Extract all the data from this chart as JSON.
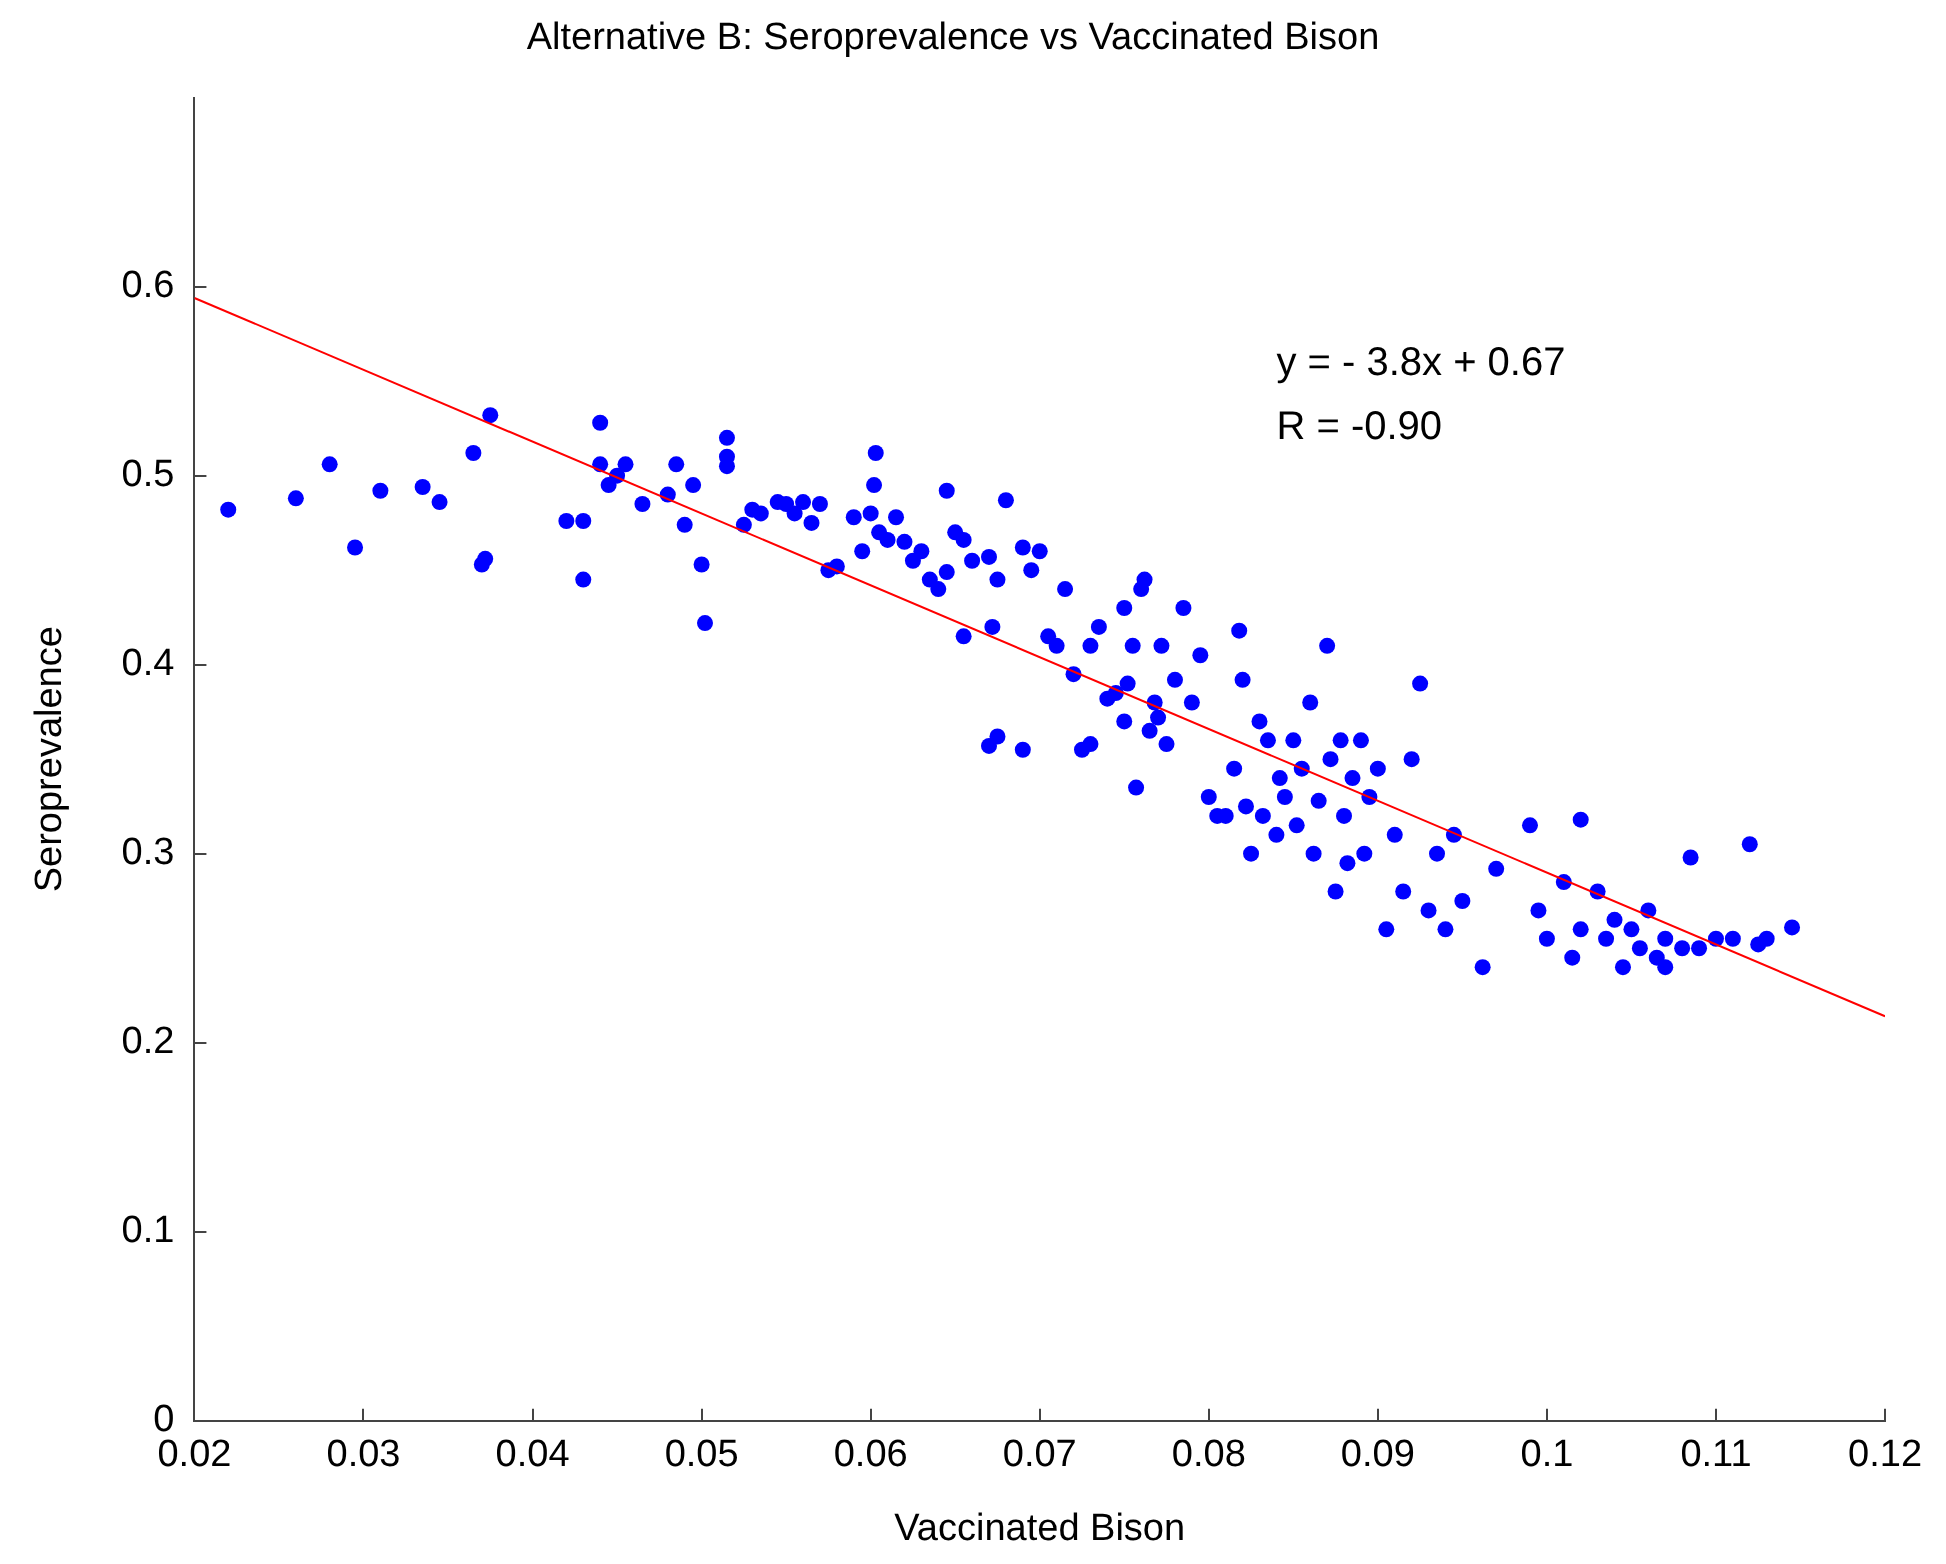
{
  "chart_data": {
    "type": "scatter",
    "title": "Alternative B: Seroprevalence vs Vaccinated Bison",
    "xlabel": "Vaccinated Bison",
    "ylabel": "Seroprevalence",
    "annotations": [
      "y = - 3.8x + 0.67",
      "R = -0.90"
    ],
    "xlim": [
      0.02,
      0.12
    ],
    "xticks": [
      0.02,
      0.03,
      0.04,
      0.05,
      0.06,
      0.07,
      0.08,
      0.09,
      0.1,
      0.11,
      0.12
    ],
    "ylim": [
      0,
      0.7
    ],
    "yticks": [
      0,
      0.1,
      0.2,
      0.3,
      0.4,
      0.5,
      0.6
    ],
    "grid": false,
    "legend": false,
    "marker": "circle",
    "series": [
      {
        "type": "scatter",
        "color": "#0000ff",
        "x": [
          0.022,
          0.026,
          0.028,
          0.0295,
          0.031,
          0.0335,
          0.0345,
          0.0365,
          0.037,
          0.0372,
          0.0375,
          0.042,
          0.043,
          0.043,
          0.044,
          0.044,
          0.0445,
          0.045,
          0.0455,
          0.0465,
          0.048,
          0.0485,
          0.049,
          0.0495,
          0.05,
          0.0502,
          0.0515,
          0.0515,
          0.0515,
          0.0525,
          0.053,
          0.0535,
          0.0545,
          0.055,
          0.0555,
          0.056,
          0.0565,
          0.057,
          0.0575,
          0.058,
          0.059,
          0.0595,
          0.06,
          0.0602,
          0.0603,
          0.0605,
          0.061,
          0.0615,
          0.062,
          0.0625,
          0.063,
          0.0635,
          0.064,
          0.0645,
          0.0645,
          0.065,
          0.0655,
          0.0655,
          0.066,
          0.067,
          0.0672,
          0.0675,
          0.068,
          0.067,
          0.0675,
          0.069,
          0.069,
          0.0695,
          0.07,
          0.0705,
          0.071,
          0.0715,
          0.072,
          0.0725,
          0.073,
          0.073,
          0.0735,
          0.074,
          0.0745,
          0.075,
          0.075,
          0.0752,
          0.0755,
          0.0757,
          0.076,
          0.0762,
          0.0765,
          0.0768,
          0.077,
          0.0772,
          0.0775,
          0.078,
          0.0785,
          0.079,
          0.0795,
          0.08,
          0.0805,
          0.081,
          0.0815,
          0.0818,
          0.082,
          0.0822,
          0.0825,
          0.083,
          0.0832,
          0.0835,
          0.084,
          0.0842,
          0.0845,
          0.085,
          0.0852,
          0.0855,
          0.086,
          0.0862,
          0.0865,
          0.087,
          0.0872,
          0.0875,
          0.0878,
          0.088,
          0.0882,
          0.0885,
          0.089,
          0.0892,
          0.0895,
          0.09,
          0.0905,
          0.091,
          0.0915,
          0.092,
          0.0925,
          0.093,
          0.0935,
          0.094,
          0.0945,
          0.095,
          0.0962,
          0.097,
          0.099,
          0.0995,
          0.1,
          0.101,
          0.1015,
          0.102,
          0.102,
          0.103,
          0.1035,
          0.104,
          0.1045,
          0.105,
          0.1055,
          0.106,
          0.1065,
          0.107,
          0.107,
          0.108,
          0.1085,
          0.109,
          0.11,
          0.111,
          0.112,
          0.1125,
          0.113,
          0.1145
        ],
        "values": [
          0.482,
          0.488,
          0.506,
          0.462,
          0.492,
          0.494,
          0.486,
          0.512,
          0.453,
          0.456,
          0.532,
          0.476,
          0.476,
          0.445,
          0.506,
          0.528,
          0.495,
          0.5,
          0.506,
          0.485,
          0.49,
          0.506,
          0.474,
          0.495,
          0.453,
          0.422,
          0.52,
          0.51,
          0.505,
          0.474,
          0.482,
          0.48,
          0.486,
          0.485,
          0.48,
          0.486,
          0.475,
          0.485,
          0.45,
          0.452,
          0.478,
          0.46,
          0.48,
          0.495,
          0.512,
          0.47,
          0.466,
          0.478,
          0.465,
          0.455,
          0.46,
          0.445,
          0.44,
          0.449,
          0.492,
          0.47,
          0.466,
          0.415,
          0.455,
          0.457,
          0.42,
          0.445,
          0.487,
          0.357,
          0.362,
          0.462,
          0.355,
          0.45,
          0.46,
          0.415,
          0.41,
          0.44,
          0.395,
          0.355,
          0.41,
          0.358,
          0.42,
          0.382,
          0.385,
          0.43,
          0.37,
          0.39,
          0.41,
          0.335,
          0.44,
          0.445,
          0.365,
          0.38,
          0.372,
          0.41,
          0.358,
          0.392,
          0.43,
          0.38,
          0.405,
          0.33,
          0.32,
          0.32,
          0.345,
          0.418,
          0.392,
          0.325,
          0.3,
          0.37,
          0.32,
          0.36,
          0.31,
          0.34,
          0.33,
          0.36,
          0.315,
          0.345,
          0.38,
          0.3,
          0.328,
          0.41,
          0.35,
          0.28,
          0.36,
          0.32,
          0.295,
          0.34,
          0.36,
          0.3,
          0.33,
          0.345,
          0.26,
          0.31,
          0.28,
          0.35,
          0.39,
          0.27,
          0.3,
          0.26,
          0.31,
          0.275,
          0.24,
          0.292,
          0.315,
          0.27,
          0.255,
          0.285,
          0.245,
          0.318,
          0.26,
          0.28,
          0.255,
          0.265,
          0.24,
          0.26,
          0.25,
          0.27,
          0.245,
          0.24,
          0.255,
          0.25,
          0.298,
          0.25,
          0.255,
          0.255,
          0.305,
          0.252,
          0.255,
          0.261
        ]
      },
      {
        "type": "line",
        "color": "#ff0000",
        "marker": "none",
        "x": [
          0.02,
          0.12
        ],
        "values": [
          0.594,
          0.214
        ]
      }
    ]
  }
}
